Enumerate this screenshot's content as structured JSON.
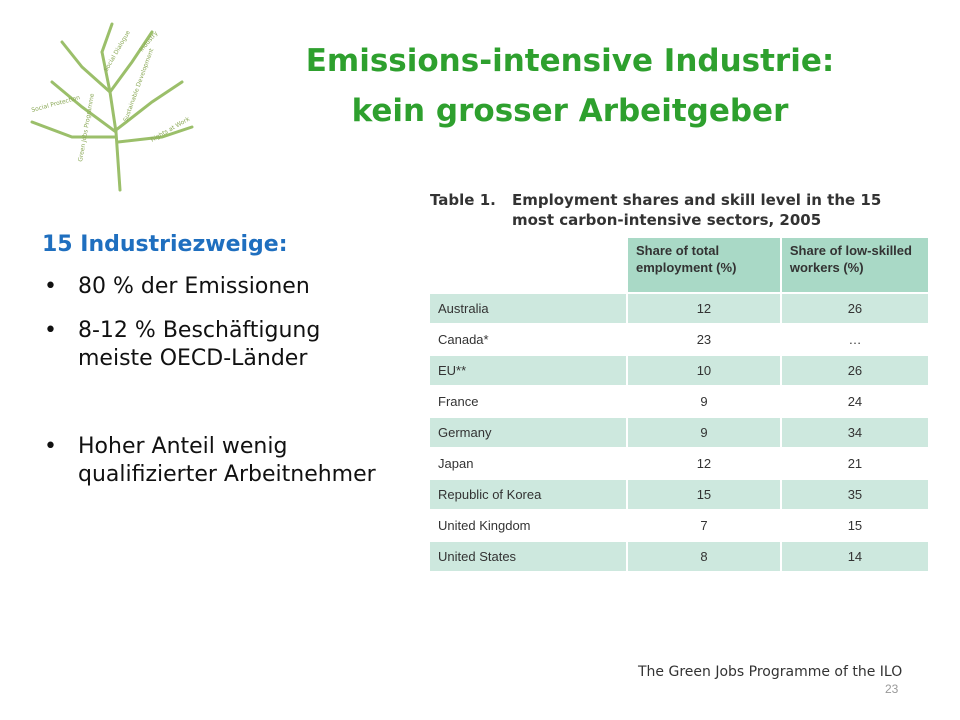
{
  "title": {
    "line1": "Emissions-intensive Industrie:",
    "line2": "kein grosser Arbeitgeber"
  },
  "subheading": "15 Industriezweige:",
  "bullets": [
    "80 % der Emissionen",
    "8-12 % Beschäftigung meiste OECD-Länder",
    "Hoher Anteil wenig qualifizierter Arbeitnehmer"
  ],
  "table": {
    "number": "Table 1.",
    "caption": "Employment shares and skill level in the 15 most carbon-intensive sectors, 2005",
    "headers": [
      "Share of total employment (%)",
      "Share of low-skilled workers (%)"
    ],
    "rows": [
      {
        "country": "Australia",
        "total": "12",
        "low": "26"
      },
      {
        "country": "Canada*",
        "total": "23",
        "low": "…"
      },
      {
        "country": "EU**",
        "total": "10",
        "low": "26"
      },
      {
        "country": "France",
        "total": "9",
        "low": "24"
      },
      {
        "country": "Germany",
        "total": "9",
        "low": "34"
      },
      {
        "country": "Japan",
        "total": "12",
        "low": "21"
      },
      {
        "country": "Republic of Korea",
        "total": "15",
        "low": "35"
      },
      {
        "country": "United Kingdom",
        "total": "7",
        "low": "15"
      },
      {
        "country": "United States",
        "total": "8",
        "low": "14"
      }
    ]
  },
  "logo": {
    "icon": "green-jobs-tree-logo",
    "text": "Green Jobs Programme",
    "words": [
      "Sustainable Development",
      "Social Dialogue",
      "Industry",
      "Social Protection",
      "Rights at Work"
    ]
  },
  "footer": "The Green Jobs Programme of the ILO",
  "page_number": "23",
  "colors": {
    "title": "#2ea02e",
    "subheading": "#1f6fbf",
    "table_header": "#a9d9c6",
    "table_row": "#cde8de"
  }
}
